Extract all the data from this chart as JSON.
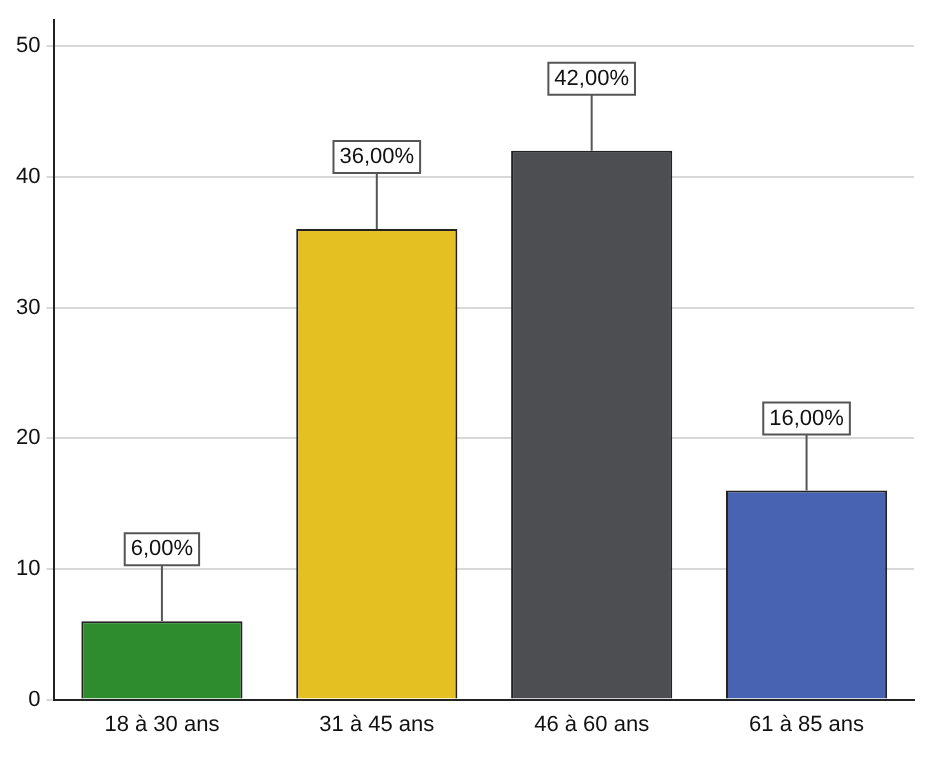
{
  "chart_data": {
    "type": "bar",
    "categories": [
      "18 à 30 ans",
      "31 à 45 ans",
      "46 à 60 ans",
      "61 à 85 ans"
    ],
    "values": [
      6,
      36,
      42,
      16
    ],
    "colors": [
      "#2e8b2e",
      "#e5c022",
      "#4d4e51",
      "#4763b2"
    ],
    "value_labels": [
      "6,00%",
      "36,00%",
      "42,00%",
      "16,00%"
    ],
    "ylim": [
      0,
      52
    ],
    "yticks": [
      0,
      10,
      20,
      30,
      40,
      50
    ],
    "grid": "y",
    "legend": false
  }
}
